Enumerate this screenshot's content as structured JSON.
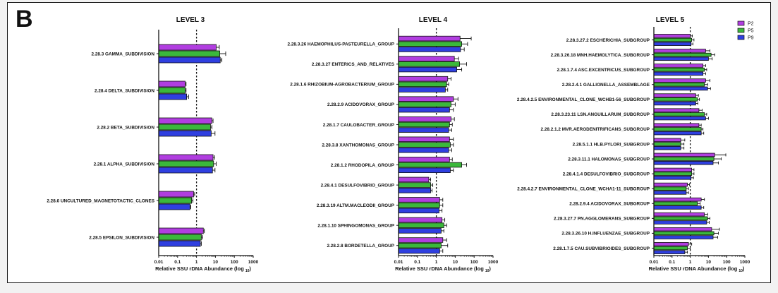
{
  "panel_label": "B",
  "colors": {
    "P2": "#b13ee0",
    "P5": "#3bb83b",
    "P9": "#2f3fe0"
  },
  "chart_data": [
    {
      "type": "bar",
      "orientation": "horizontal",
      "title": "LEVEL 3",
      "xlabel": "Relative SSU rDNA Abundance (log",
      "xlabel_sub": "10",
      "xlabel_close": ")",
      "xscale": "log",
      "xlim": [
        0.01,
        1000
      ],
      "xticks": [
        "0.01",
        "0.1",
        "1",
        "10",
        "100",
        "1000"
      ],
      "reference_line": 1,
      "categories": [
        "2.28.3 GAMMA_SUBDIVISION",
        "2.28.4 DELTA_SUBDIVISION",
        "2.28.2 BETA_SUBDIVISION",
        "2.28.1 ALPHA_SUBDIVISION",
        "2.28.6 UNCULTURED_MAGNETOTACTIC_CLONES",
        "2.28.5 EPSILON_SUBDIVISION"
      ],
      "series": [
        {
          "name": "P2",
          "values": [
            11,
            0.25,
            6.5,
            7.5,
            0.7,
            2.3
          ],
          "errors": [
            16,
            0.28,
            7.5,
            9,
            0.8,
            2.6
          ]
        },
        {
          "name": "P5",
          "values": [
            17,
            0.25,
            5.5,
            8,
            0.55,
            1.8
          ],
          "errors": [
            35,
            0.28,
            6.5,
            11,
            0.65,
            2.1
          ]
        },
        {
          "name": "P9",
          "values": [
            18,
            0.3,
            6.0,
            7.0,
            0.45,
            1.6
          ],
          "errors": [
            22,
            0.38,
            9.5,
            9.5,
            0.5,
            1.8
          ]
        }
      ]
    },
    {
      "type": "bar",
      "orientation": "horizontal",
      "title": "LEVEL 4",
      "xlabel": "Relative SSU rDNA Abundance (log",
      "xlabel_sub": "10",
      "xlabel_close": ")",
      "xscale": "log",
      "xlim": [
        0.01,
        1000
      ],
      "xticks": [
        "0.01",
        "0.1",
        "1",
        "10",
        "100",
        "1000"
      ],
      "reference_line": 1,
      "categories": [
        "2.28.3.26 HAEMOPHILUS-PASTEURELLA_GROUP",
        "2.28.3.27 ENTERICS_AND_RELATIVES",
        "2.28.1.6 RHIZOBIUM-AGROBACTERIUM_GROUP",
        "2.28.2.9 ACIDOVORAX_GROUP",
        "2.28.1.7 CAULOBACTER_GROUP",
        "2.28.3.8 XANTHOMONAS_GROUP",
        "2.28.1.2 RHODOPILA_GROUP",
        "2.28.4.1 DESULFOVIBRIO_GROUP",
        "2.28.3.19 ALTM.MACLEODII_GROUP",
        "2.28.1.10 SPHINGOMONAS_GROUP",
        "2.28.2.8 BORDETELLA_GROUP"
      ],
      "series": [
        {
          "name": "P2",
          "values": [
            18,
            9,
            4,
            8,
            6,
            5,
            5,
            0.4,
            1.5,
            2,
            2.2
          ],
          "errors": [
            70,
            15,
            6,
            14,
            9,
            8,
            7,
            0.5,
            2.2,
            2.8,
            3.5
          ]
        },
        {
          "name": "P5",
          "values": [
            22,
            17,
            3.5,
            6,
            5,
            5.5,
            22,
            0.5,
            1.5,
            2.5,
            1.8
          ],
          "errors": [
            45,
            40,
            4.5,
            10,
            7,
            8,
            40,
            0.65,
            2.2,
            3.5,
            4
          ]
        },
        {
          "name": "P9",
          "values": [
            19,
            12,
            3,
            5,
            4.5,
            4.5,
            5.5,
            0.5,
            1.4,
            1.8,
            1.5
          ],
          "errors": [
            30,
            22,
            4,
            8,
            6.5,
            6.5,
            8,
            0.6,
            2,
            2.5,
            2.2
          ]
        }
      ]
    },
    {
      "type": "bar",
      "orientation": "horizontal",
      "title": "LEVEL 5",
      "xlabel": "Relative SSU rDNA Abundance (log",
      "xlabel_sub": "10",
      "xlabel_close": ")",
      "xscale": "log",
      "xlim": [
        0.01,
        1000
      ],
      "xticks": [
        "0.01",
        "0.1",
        "1",
        "10",
        "100",
        "1000"
      ],
      "reference_line": 1,
      "legend": [
        "P2",
        "P5",
        "P9"
      ],
      "legend_position": "top-right",
      "categories": [
        "2.28.3.27.2 ESCHERICHIA_SUBGROUP",
        "2.28.3.26.18 MNH.HAEMOLYTICA_SUBGROUP",
        "2.28.1.7.4 ASC.EXCENTRICUS_SUBGROUP",
        "2.28.2.4.1 GALLIONELLA_ASSEMBLAGE",
        "2.28.4.2.5 ENVIRONMENTAL_CLONE_WCHB1-56_SUBGROUP",
        "2.28.3.23.11 LSN.ANGUILLARUM_SUBGROUP",
        "2.28.2.1.2 MVR.AERODENITRIFICANS_SUBGROUP",
        "2.28.5.1.1 HLB.PYLORI_SUBGROUP",
        "2.28.3.11.1 HALOMONAS_SUBGROUP",
        "2.28.4.1.4 DESULFOVIBRIO_SUBGROUP",
        "2.28.4.2.7 ENVIRONMENTAL_CLONE_WCHA1-11_SUBGROUP",
        "2.28.2.9.4 ACIDOVORAX_SUBGROUP",
        "2.28.3.27.7 PN.AGGLOMERANS_SUBGROUP",
        "2.28.3.26.10 H.INFLUENZAE_SUBGROUP",
        "2.28.1.7.5 CAU.SUBVIBRIOIDES_SUBGROUP"
      ],
      "series": [
        {
          "name": "P2",
          "values": [
            1,
            7,
            5,
            7,
            2,
            3,
            3,
            0.3,
            22,
            1.2,
            0.7,
            4,
            6,
            15,
            0.8
          ],
          "errors": [
            1.3,
            12,
            7,
            12,
            2.8,
            4.5,
            4,
            0.5,
            90,
            1.6,
            0.9,
            6,
            9,
            40,
            1.2
          ]
        },
        {
          "name": "P5",
          "values": [
            1.2,
            14,
            6,
            6,
            2.5,
            6,
            4,
            0.3,
            20,
            1.2,
            0.6,
            2.5,
            9,
            20,
            0.7
          ],
          "errors": [
            1.6,
            22,
            8,
            9,
            3.2,
            8,
            5,
            0.45,
            50,
            1.6,
            0.8,
            3.5,
            12,
            35,
            1
          ]
        },
        {
          "name": "P9",
          "values": [
            1.1,
            10,
            5,
            9,
            2,
            7,
            4,
            0.3,
            18,
            1.1,
            0.6,
            4,
            8,
            18,
            0.5
          ],
          "errors": [
            1.4,
            16,
            7,
            13,
            2.6,
            10,
            5.5,
            0.45,
            35,
            1.5,
            0.8,
            5.5,
            11,
            32,
            0.7
          ]
        }
      ]
    }
  ]
}
